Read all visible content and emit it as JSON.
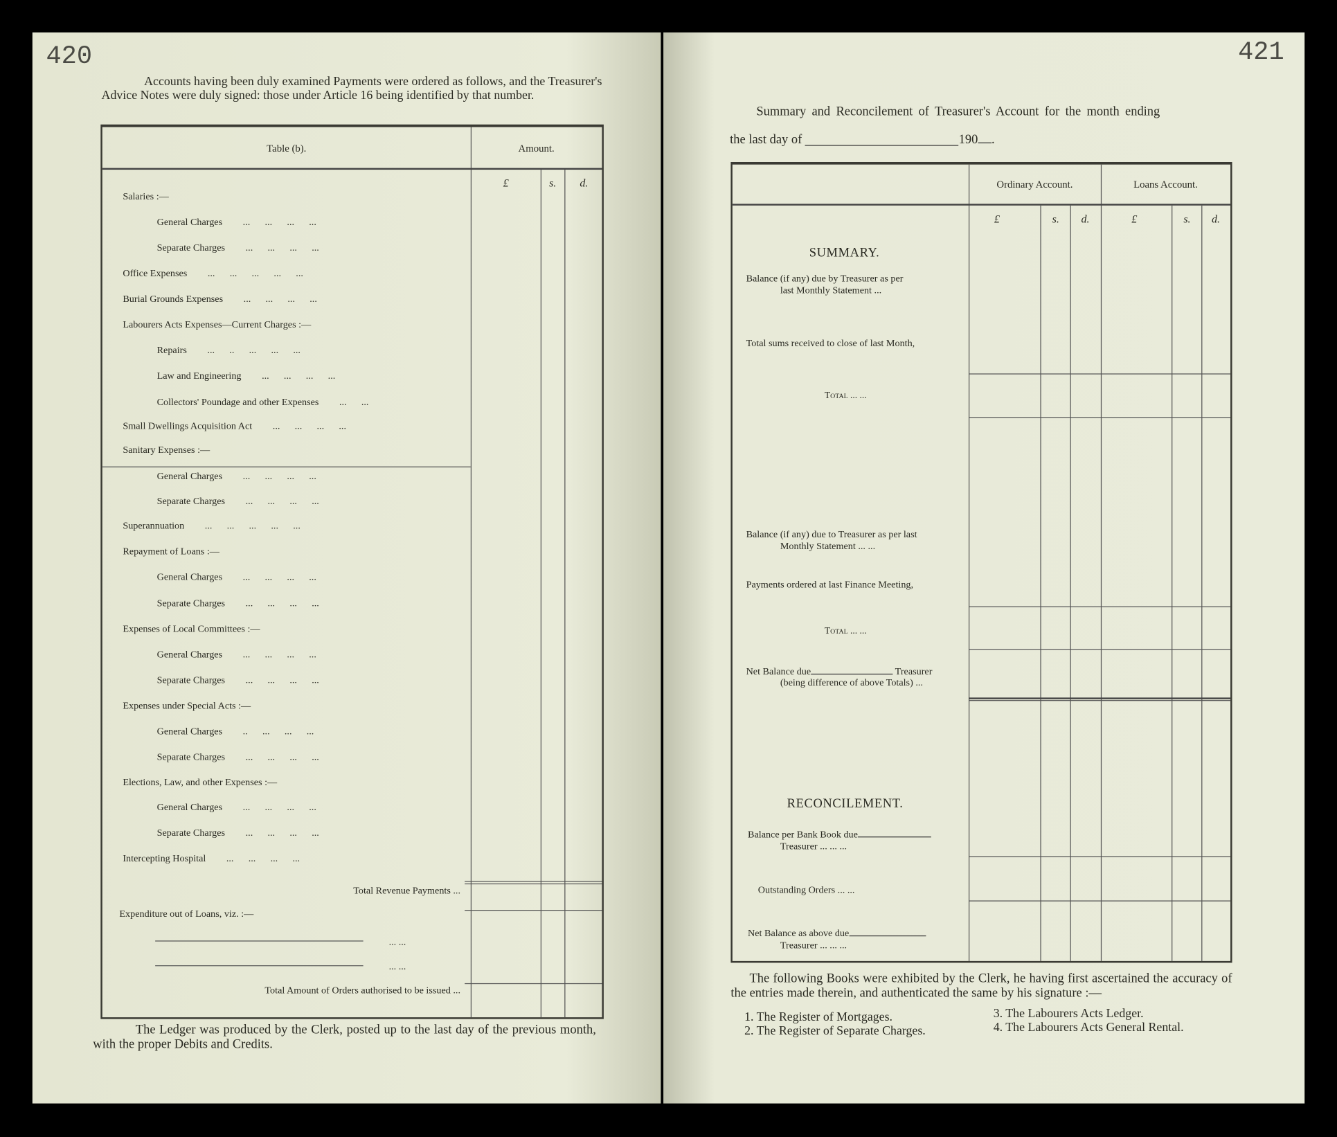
{
  "left_page": {
    "page_number": "420",
    "intro": "Accounts having been duly examined Payments were ordered as follows, and the Treasurer's Advice Notes were duly signed: those under Article 16 being identified by that number.",
    "table": {
      "title": "Table (b).",
      "amount_header": "Amount.",
      "currency": [
        "£",
        "s.",
        "d."
      ],
      "rows": [
        {
          "label": "Salaries :—",
          "indent": 0,
          "dots": ""
        },
        {
          "label": "General Charges",
          "indent": 1,
          "dots": "...      ...      ...      ..."
        },
        {
          "label": "Separate Charges",
          "indent": 1,
          "dots": "...      ...      ...      ..."
        },
        {
          "label": "Office Expenses",
          "indent": 0,
          "dots": "...      ...      ...      ...      ..."
        },
        {
          "label": "Burial Grounds Expenses",
          "indent": 0,
          "dots": "...      ...      ...      ..."
        },
        {
          "label": "Labourers Acts Expenses—Current Charges :—",
          "indent": 0,
          "dots": ""
        },
        {
          "label": "Repairs",
          "indent": 1,
          "dots": "...      ..      ...      ...      ..."
        },
        {
          "label": "Law and Engineering",
          "indent": 1,
          "dots": "...      ...      ...      ..."
        },
        {
          "label": "Collectors' Poundage and other Expenses",
          "indent": 1,
          "dots": "...      ..."
        },
        {
          "label": "Small Dwellings Acquisition Act",
          "indent": 0,
          "dots": "...      ...      ...      ..."
        },
        {
          "label": "Sanitary Expenses :—",
          "indent": 0,
          "dots": ""
        },
        {
          "label": "General Charges",
          "indent": 1,
          "dots": "...      ...      ...      ..."
        },
        {
          "label": "Separate Charges",
          "indent": 1,
          "dots": "...      ...      ...      ..."
        },
        {
          "label": "Superannuation",
          "indent": 0,
          "dots": "...      ...      ...      ...      ..."
        },
        {
          "label": "Repayment of Loans :—",
          "indent": 0,
          "dots": ""
        },
        {
          "label": "General Charges",
          "indent": 1,
          "dots": "...      ...      ...      ..."
        },
        {
          "label": "Separate Charges",
          "indent": 1,
          "dots": "...      ...      ...      ..."
        },
        {
          "label": "Expenses of Local Committees :—",
          "indent": 0,
          "dots": ""
        },
        {
          "label": "General Charges",
          "indent": 1,
          "dots": "...      ...      ...      ..."
        },
        {
          "label": "Separate Charges",
          "indent": 1,
          "dots": "...      ...      ...      ..."
        },
        {
          "label": "Expenses under Special Acts :—",
          "indent": 0,
          "dots": ""
        },
        {
          "label": "General Charges",
          "indent": 1,
          "dots": "..      ...      ...      ..."
        },
        {
          "label": "Separate Charges",
          "indent": 1,
          "dots": "...      ...      ...      ..."
        },
        {
          "label": "Elections, Law, and other Expenses :—",
          "indent": 0,
          "dots": ""
        },
        {
          "label": "General Charges",
          "indent": 1,
          "dots": "...      ...      ...      ..."
        },
        {
          "label": "Separate Charges",
          "indent": 1,
          "dots": "...      ...      ...      ..."
        },
        {
          "label": "Intercepting Hospital",
          "indent": 0,
          "dots": "...      ...      ...      ..."
        }
      ],
      "total_revenue": "Total Revenue Payments   ...",
      "expenditure_loans": "Expenditure out of Loans, viz. :—",
      "blank_dots": "...      ...",
      "total_orders": "Total Amount of Orders authorised to be issued   ..."
    },
    "footer": "The Ledger was produced by the Clerk, posted up to the last day of the previous month, with the proper Debits and Credits."
  },
  "right_page": {
    "page_number": "421",
    "title_line1": "Summary and Reconcilement of Treasurer's Account for the month ending",
    "title_line2_prefix": "the last day of",
    "title_line2_year": "190",
    "title_line2_suffix": ".",
    "table": {
      "headers": [
        "Ordinary Account.",
        "Loans Account."
      ],
      "currency": [
        "£",
        "s.",
        "d.",
        "£",
        "s.",
        "d."
      ],
      "summary_heading": "SUMMARY.",
      "balance_by_1": "Balance (if any) due by Treasurer as per",
      "balance_by_2": "last Monthly Statement   ...",
      "total_sums": "Total sums received to close of last Month,",
      "total_1": "Total   ...   ...",
      "balance_to_1": "Balance (if any) due to Treasurer as per last",
      "balance_to_2": "Monthly Statement   ...   ...",
      "payments": "Payments ordered at last Finance Meeting,",
      "total_2": "Total   ...   ...",
      "net_1": "Net Balance due",
      "net_1b": "Treasurer",
      "net_2": "(being difference of above Totals)   ...",
      "reconcile_heading": "RECONCILEMENT.",
      "bank_1": "Balance per Bank Book due",
      "bank_2": "Treasurer   ...   ...   ...",
      "outstanding": "Outstanding Orders   ...   ...",
      "netabove_1": "Net Balance as above due",
      "netabove_2": "Treasurer   ...   ...   ..."
    },
    "books_intro": "The following Books were exhibited by the Clerk, he having first ascertained the accuracy of the entries made therein, and authenticated the same by his signature :—",
    "books": [
      "1. The Register of Mortgages.",
      "2. The Register of Separate Charges.",
      "3. The Labourers Acts Ledger.",
      "4. The Labourers Acts General Rental."
    ]
  }
}
